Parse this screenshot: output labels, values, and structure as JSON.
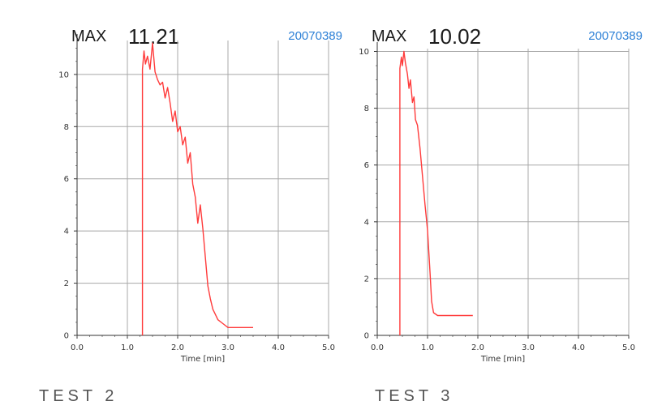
{
  "colors": {
    "series": "#ff3b3b",
    "grid": "#a8a8a8",
    "serial": "#2b7fd6"
  },
  "chart_data": [
    {
      "type": "line",
      "max_label": "MAX",
      "max_value": "11.21",
      "serial": "20070389",
      "xlabel": "Time [min]",
      "ylabel": "",
      "xlim": [
        0,
        5
      ],
      "ylim": [
        0,
        11.3
      ],
      "xticks": [
        "0.0",
        "1.0",
        "2.0",
        "3.0",
        "4.0",
        "5.0"
      ],
      "yticks": [
        "0",
        "2",
        "4",
        "6",
        "8",
        "10"
      ],
      "grid": true,
      "caption": "TEST 2",
      "series": [
        {
          "x": [
            1.3,
            1.3,
            1.33,
            1.36,
            1.4,
            1.45,
            1.5,
            1.55,
            1.6,
            1.65,
            1.7,
            1.75,
            1.8,
            1.85,
            1.9,
            1.95,
            2.0,
            2.05,
            2.1,
            2.15,
            2.2,
            2.25,
            2.3,
            2.35,
            2.4,
            2.45,
            2.5,
            2.55,
            2.6,
            2.65,
            2.7,
            2.75,
            2.8,
            2.9,
            3.0,
            3.2,
            3.5
          ],
          "y": [
            0,
            10.2,
            10.9,
            10.4,
            10.7,
            10.2,
            11.2,
            10.1,
            9.8,
            9.6,
            9.7,
            9.1,
            9.5,
            8.9,
            8.2,
            8.6,
            7.8,
            8.0,
            7.3,
            7.6,
            6.6,
            7.0,
            5.8,
            5.3,
            4.3,
            5.0,
            4.1,
            3.0,
            1.9,
            1.4,
            1.0,
            0.8,
            0.6,
            0.45,
            0.3,
            0.3,
            0.3
          ]
        }
      ]
    },
    {
      "type": "line",
      "max_label": "MAX",
      "max_value": "10.02",
      "serial": "20070389",
      "xlabel": "Time [min]",
      "ylabel": "",
      "xlim": [
        0,
        5
      ],
      "ylim": [
        0,
        10.1
      ],
      "xticks": [
        "0.0",
        "1.0",
        "2.0",
        "3.0",
        "4.0",
        "5.0"
      ],
      "yticks": [
        "0",
        "2",
        "4",
        "6",
        "8",
        "10"
      ],
      "grid": true,
      "caption": "TEST 3",
      "series": [
        {
          "x": [
            0.45,
            0.45,
            0.48,
            0.5,
            0.53,
            0.56,
            0.6,
            0.63,
            0.66,
            0.7,
            0.73,
            0.76,
            0.8,
            0.85,
            0.9,
            0.95,
            1.0,
            1.05,
            1.08,
            1.12,
            1.2,
            1.5,
            1.9
          ],
          "y": [
            0,
            9.4,
            9.8,
            9.5,
            10.0,
            9.6,
            9.2,
            8.7,
            9.0,
            8.2,
            8.4,
            7.6,
            7.4,
            6.6,
            5.6,
            4.6,
            3.7,
            2.2,
            1.2,
            0.8,
            0.7,
            0.7,
            0.7
          ]
        }
      ]
    }
  ]
}
